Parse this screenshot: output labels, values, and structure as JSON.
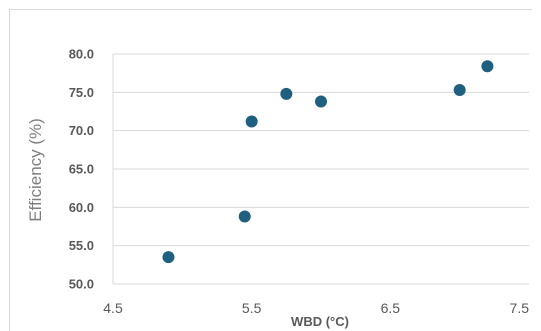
{
  "chart_data": {
    "type": "scatter",
    "title": "",
    "xlabel": "WBD (°C)",
    "ylabel": "Efficiency (%)",
    "xlim": [
      4.5,
      7.5
    ],
    "ylim": [
      50.0,
      80.0
    ],
    "x_ticks": [
      "4.5",
      "5.5",
      "6.5",
      "7.5"
    ],
    "y_ticks": [
      "50.0",
      "55.0",
      "60.0",
      "65.0",
      "70.0",
      "75.0",
      "80.0"
    ],
    "grid": "horizontal",
    "marker_color": "#1f5f7f",
    "points": [
      {
        "x": 4.9,
        "y": 53.5
      },
      {
        "x": 5.45,
        "y": 58.8
      },
      {
        "x": 5.5,
        "y": 71.2
      },
      {
        "x": 5.75,
        "y": 74.8
      },
      {
        "x": 6.0,
        "y": 73.8
      },
      {
        "x": 7.0,
        "y": 75.3
      },
      {
        "x": 7.2,
        "y": 78.4
      }
    ]
  }
}
